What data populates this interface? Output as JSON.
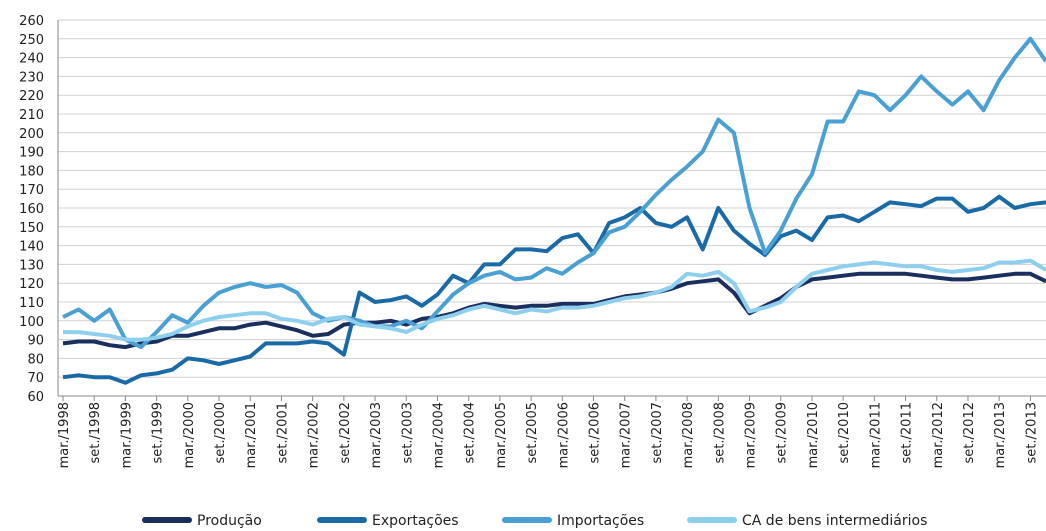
{
  "chart_data": {
    "type": "line",
    "categories": [
      "mar./1998",
      null,
      "set./1998",
      null,
      "mar./1999",
      null,
      "set./1999",
      null,
      "mar./2000",
      null,
      "set./2000",
      null,
      "mar./2001",
      null,
      "set./2001",
      null,
      "mar./2002",
      null,
      "set./2002",
      null,
      "mar./2003",
      null,
      "set./2003",
      null,
      "mar./2004",
      null,
      "set./2004",
      null,
      "mar./2005",
      null,
      "set./2005",
      null,
      "mar./2006",
      null,
      "set./2006",
      null,
      "mar./2007",
      null,
      "set./2007",
      null,
      "mar./2008",
      null,
      "set./2008",
      null,
      "mar./2009",
      null,
      "set./2009",
      null,
      "mar./2010",
      null,
      "set./2010",
      null,
      "mar./2011",
      null,
      "set./2011",
      null,
      "mar./2012",
      null,
      "set./2012",
      null,
      "mar./2013",
      null,
      "set./2013",
      null
    ],
    "series": [
      {
        "name": "Produção",
        "color": "#1b2f5e",
        "values": [
          88,
          89,
          89,
          87,
          86,
          88,
          89,
          92,
          92,
          94,
          96,
          96,
          98,
          99,
          97,
          95,
          92,
          93,
          98,
          99,
          99,
          100,
          98,
          101,
          102,
          104,
          107,
          109,
          108,
          107,
          108,
          108,
          109,
          109,
          109,
          111,
          113,
          114,
          115,
          117,
          120,
          121,
          122,
          115,
          104,
          108,
          112,
          118,
          122,
          123,
          124,
          125,
          125,
          125,
          125,
          124,
          123,
          122,
          122,
          123,
          124,
          125,
          125,
          121
        ]
      },
      {
        "name": "Exportações",
        "color": "#1a6aa8",
        "values": [
          70,
          71,
          70,
          70,
          67,
          71,
          72,
          74,
          80,
          79,
          77,
          79,
          81,
          88,
          88,
          88,
          89,
          88,
          82,
          115,
          110,
          111,
          113,
          108,
          114,
          124,
          120,
          130,
          130,
          138,
          138,
          137,
          144,
          146,
          136,
          152,
          155,
          160,
          152,
          150,
          155,
          138,
          160,
          148,
          141,
          135,
          145,
          148,
          143,
          155,
          156,
          153,
          158,
          163,
          162,
          161,
          165,
          165,
          158,
          160,
          166,
          160,
          162,
          163
        ]
      },
      {
        "name": "Importações",
        "color": "#4a9fd4",
        "values": [
          102,
          106,
          100,
          106,
          90,
          86,
          94,
          103,
          99,
          108,
          115,
          118,
          120,
          118,
          119,
          115,
          104,
          100,
          102,
          100,
          97,
          97,
          100,
          96,
          105,
          114,
          120,
          124,
          126,
          122,
          123,
          128,
          125,
          131,
          136,
          147,
          150,
          158,
          167,
          175,
          182,
          190,
          207,
          200,
          160,
          136,
          148,
          165,
          178,
          206,
          206,
          222,
          220,
          212,
          220,
          230,
          222,
          215,
          222,
          212,
          228,
          240,
          250,
          238
        ]
      },
      {
        "name": "CA de bens intermediários",
        "color": "#8fcfee",
        "values": [
          94,
          94,
          93,
          92,
          90,
          90,
          91,
          93,
          97,
          100,
          102,
          103,
          104,
          104,
          101,
          100,
          98,
          101,
          102,
          98,
          97,
          96,
          94,
          98,
          101,
          103,
          106,
          108,
          106,
          104,
          106,
          105,
          107,
          107,
          108,
          110,
          112,
          113,
          115,
          118,
          125,
          124,
          126,
          120,
          105,
          107,
          110,
          118,
          125,
          127,
          129,
          130,
          131,
          130,
          129,
          129,
          127,
          126,
          127,
          128,
          131,
          131,
          132,
          127
        ]
      }
    ],
    "ylim": [
      60,
      260
    ],
    "yticks": [
      60,
      70,
      80,
      90,
      100,
      110,
      120,
      130,
      140,
      150,
      160,
      170,
      180,
      190,
      200,
      210,
      220,
      230,
      240,
      250,
      260
    ],
    "grid": true,
    "legend": "bottom"
  }
}
